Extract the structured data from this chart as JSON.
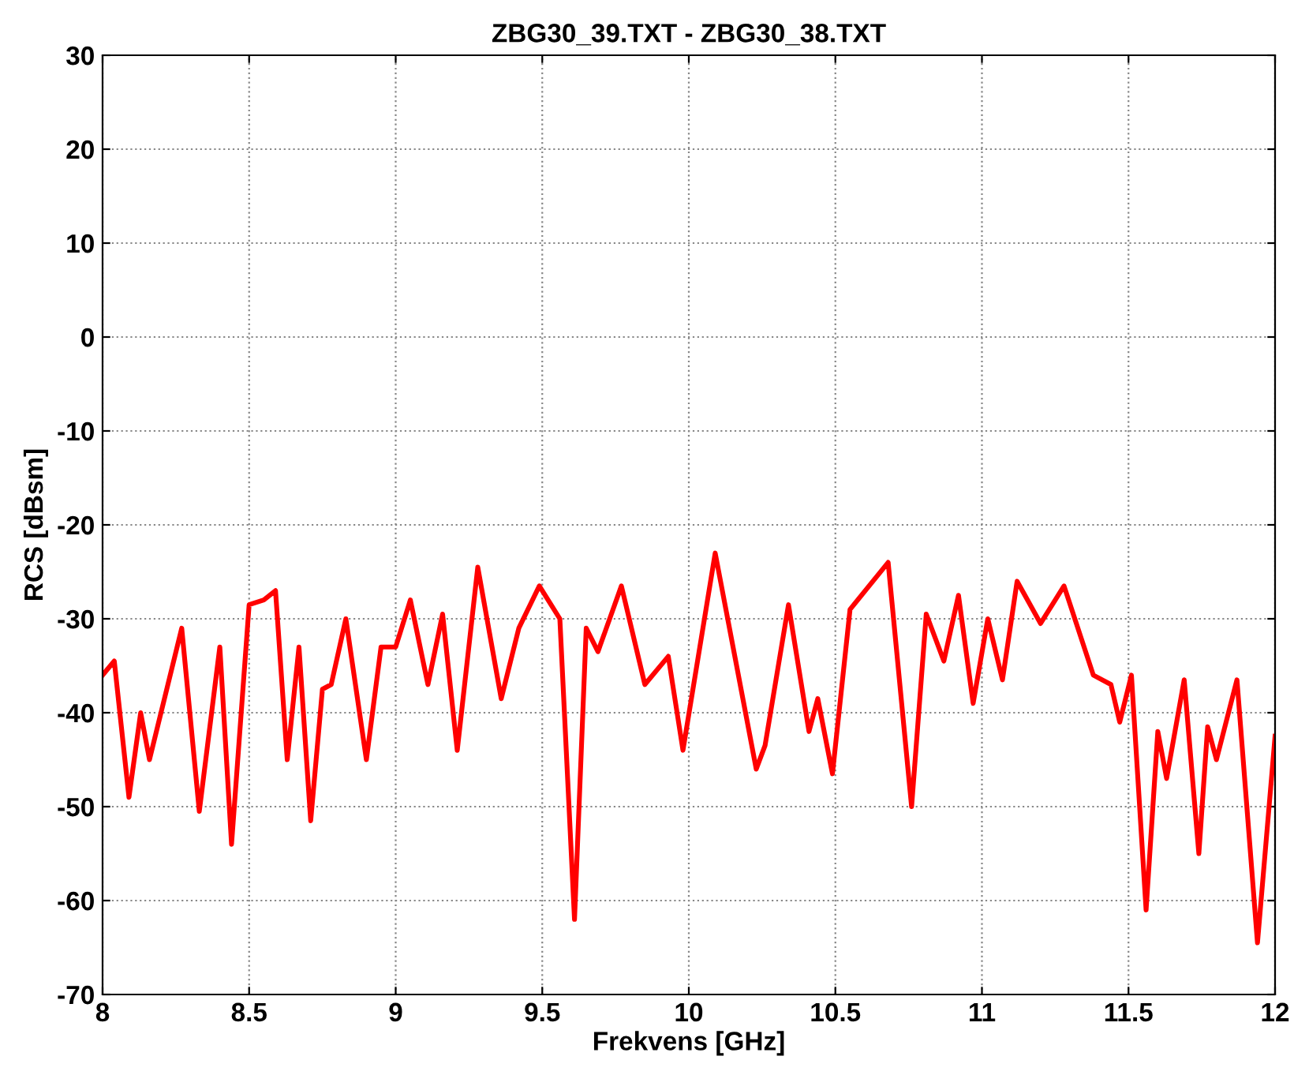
{
  "chart_data": {
    "type": "line",
    "title": "ZBG30_39.TXT - ZBG30_38.TXT",
    "xlabel": "Frekvens [GHz]",
    "ylabel": "RCS [dBsm]",
    "xlim": [
      8,
      12
    ],
    "xticks": [
      8,
      8.5,
      9,
      9.5,
      10,
      10.5,
      11,
      11.5,
      12
    ],
    "ylim": [
      -70,
      30
    ],
    "yticks": [
      -70,
      -60,
      -50,
      -40,
      -30,
      -20,
      -10,
      0,
      10,
      20,
      30
    ],
    "grid": true,
    "line_style": "solid",
    "marker": "none",
    "series": [
      {
        "color": "#ff0000",
        "x": [
          8.0,
          8.04,
          8.09,
          8.13,
          8.16,
          8.27,
          8.33,
          8.4,
          8.44,
          8.5,
          8.55,
          8.59,
          8.63,
          8.67,
          8.71,
          8.75,
          8.78,
          8.83,
          8.9,
          8.95,
          9.0,
          9.05,
          9.11,
          9.16,
          9.21,
          9.28,
          9.36,
          9.42,
          9.49,
          9.56,
          9.61,
          9.65,
          9.69,
          9.77,
          9.85,
          9.93,
          9.98,
          10.09,
          10.23,
          10.26,
          10.34,
          10.41,
          10.44,
          10.49,
          10.55,
          10.68,
          10.76,
          10.81,
          10.87,
          10.92,
          10.97,
          11.02,
          11.07,
          11.12,
          11.2,
          11.28,
          11.38,
          11.44,
          11.47,
          11.51,
          11.56,
          11.6,
          11.63,
          11.69,
          11.74,
          11.77,
          11.8,
          11.87,
          11.94,
          12.0
        ],
        "values": [
          -36,
          -34.5,
          -49,
          -40,
          -45,
          -31,
          -50.5,
          -33,
          -54,
          -28.5,
          -28,
          -27,
          -45,
          -33,
          -51.5,
          -37.5,
          -37,
          -30,
          -45,
          -33,
          -33,
          -28,
          -37,
          -29.5,
          -44,
          -24.5,
          -38.5,
          -31,
          -26.5,
          -30,
          -62,
          -31,
          -33.5,
          -26.5,
          -37,
          -34,
          -44,
          -23,
          -46,
          -43.5,
          -28.5,
          -42,
          -38.5,
          -46.5,
          -29,
          -24,
          -50,
          -29.5,
          -34.5,
          -27.5,
          -39,
          -30,
          -36.5,
          -26,
          -30.5,
          -26.5,
          -36,
          -37,
          -41,
          -36,
          -61,
          -42,
          -47,
          -36.5,
          -55,
          -41.5,
          -45,
          -36.5,
          -64.5,
          -42.5
        ]
      }
    ]
  }
}
